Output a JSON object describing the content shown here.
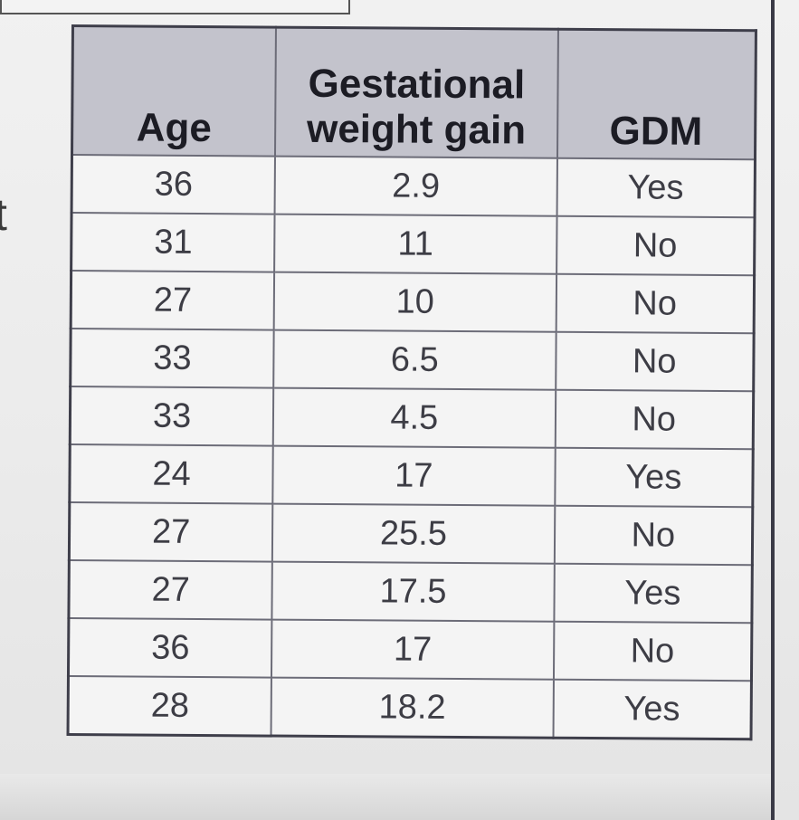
{
  "side_text": "t",
  "table": {
    "columns": [
      "Age",
      "Gestational weight gain",
      "GDM"
    ],
    "header_lines": {
      "gain_line1": "Gestational",
      "gain_line2": "weight gain"
    },
    "rows": [
      [
        "36",
        "2.9",
        "Yes"
      ],
      [
        "31",
        "11",
        "No"
      ],
      [
        "27",
        "10",
        "No"
      ],
      [
        "33",
        "6.5",
        "No"
      ],
      [
        "33",
        "4.5",
        "No"
      ],
      [
        "24",
        "17",
        "Yes"
      ],
      [
        "27",
        "25.5",
        "No"
      ],
      [
        "27",
        "17.5",
        "Yes"
      ],
      [
        "36",
        "17",
        "No"
      ],
      [
        "28",
        "18.2",
        "Yes"
      ]
    ]
  },
  "colors": {
    "header_bg": "#c3c3cc",
    "cell_bg": "#f4f4f4",
    "border": "#3e3e4a"
  }
}
